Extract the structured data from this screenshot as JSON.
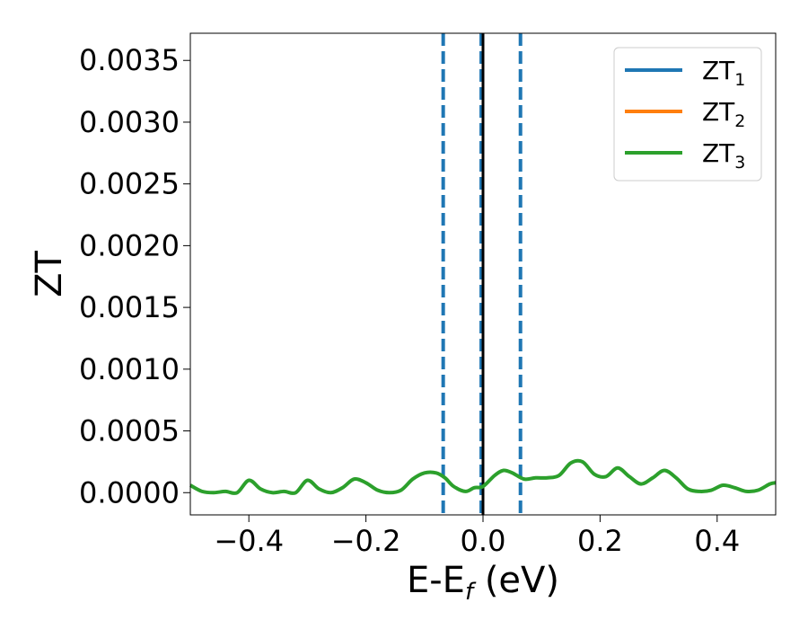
{
  "chart_data": {
    "type": "line",
    "title": "",
    "xlabel_main": "E-E",
    "xlabel_sub": "f",
    "xlabel_tail": " (eV)",
    "ylabel": "ZT",
    "xlim": [
      -0.5,
      0.5
    ],
    "ylim": [
      -0.00018,
      0.00372
    ],
    "xticks": [
      -0.4,
      -0.2,
      0.0,
      0.2,
      0.4
    ],
    "xtick_labels": [
      "−0.4",
      "−0.2",
      "0.0",
      "0.2",
      "0.4"
    ],
    "yticks": [
      0.0,
      0.0005,
      0.001,
      0.0015,
      0.002,
      0.0025,
      0.003,
      0.0035
    ],
    "ytick_labels": [
      "0.0000",
      "0.0005",
      "0.0010",
      "0.0015",
      "0.0020",
      "0.0025",
      "0.0030",
      "0.0035"
    ],
    "grid": false,
    "legend_position": "top-right",
    "legend": [
      {
        "main": "ZT",
        "sub": "1",
        "color": "#1f77b4"
      },
      {
        "main": "ZT",
        "sub": "2",
        "color": "#ff7f0e"
      },
      {
        "main": "ZT",
        "sub": "3",
        "color": "#2ca02c"
      }
    ],
    "vlines": [
      {
        "x": -0.068,
        "color": "#1f77b4",
        "style": "dashed"
      },
      {
        "x": -0.003,
        "color": "#1f77b4",
        "style": "dashed"
      },
      {
        "x": 0.0,
        "color": "#000000",
        "style": "solid"
      },
      {
        "x": 0.064,
        "color": "#1f77b4",
        "style": "dashed"
      }
    ],
    "series": [
      {
        "name": "ZT3",
        "color": "#2ca02c",
        "x": [
          -0.5,
          -0.48,
          -0.46,
          -0.44,
          -0.42,
          -0.4,
          -0.38,
          -0.36,
          -0.34,
          -0.32,
          -0.3,
          -0.28,
          -0.26,
          -0.24,
          -0.22,
          -0.2,
          -0.18,
          -0.16,
          -0.14,
          -0.12,
          -0.1,
          -0.08,
          -0.065,
          -0.05,
          -0.03,
          -0.015,
          0.0,
          0.02,
          0.035,
          0.05,
          0.07,
          0.09,
          0.11,
          0.13,
          0.15,
          0.17,
          0.19,
          0.21,
          0.23,
          0.25,
          0.27,
          0.29,
          0.31,
          0.33,
          0.35,
          0.37,
          0.39,
          0.41,
          0.43,
          0.45,
          0.47,
          0.49,
          0.5
        ],
        "y": [
          6e-05,
          1e-05,
          0.0,
          1e-05,
          0.0,
          0.0001,
          3e-05,
          0.0,
          1e-05,
          0.0,
          0.0001,
          3e-05,
          0.0,
          4e-05,
          0.00011,
          8e-05,
          2e-05,
          0.0,
          2e-05,
          0.00011,
          0.00016,
          0.00016,
          0.00012,
          5e-05,
          1e-05,
          4e-05,
          5e-05,
          0.00014,
          0.00018,
          0.00016,
          0.00011,
          0.00012,
          0.00012,
          0.00014,
          0.00024,
          0.00025,
          0.00015,
          0.00013,
          0.0002,
          0.00013,
          7e-05,
          0.00012,
          0.00018,
          0.00012,
          3e-05,
          1e-05,
          2e-05,
          6e-05,
          4e-05,
          1e-05,
          2e-05,
          7e-05,
          8e-05
        ]
      }
    ]
  }
}
